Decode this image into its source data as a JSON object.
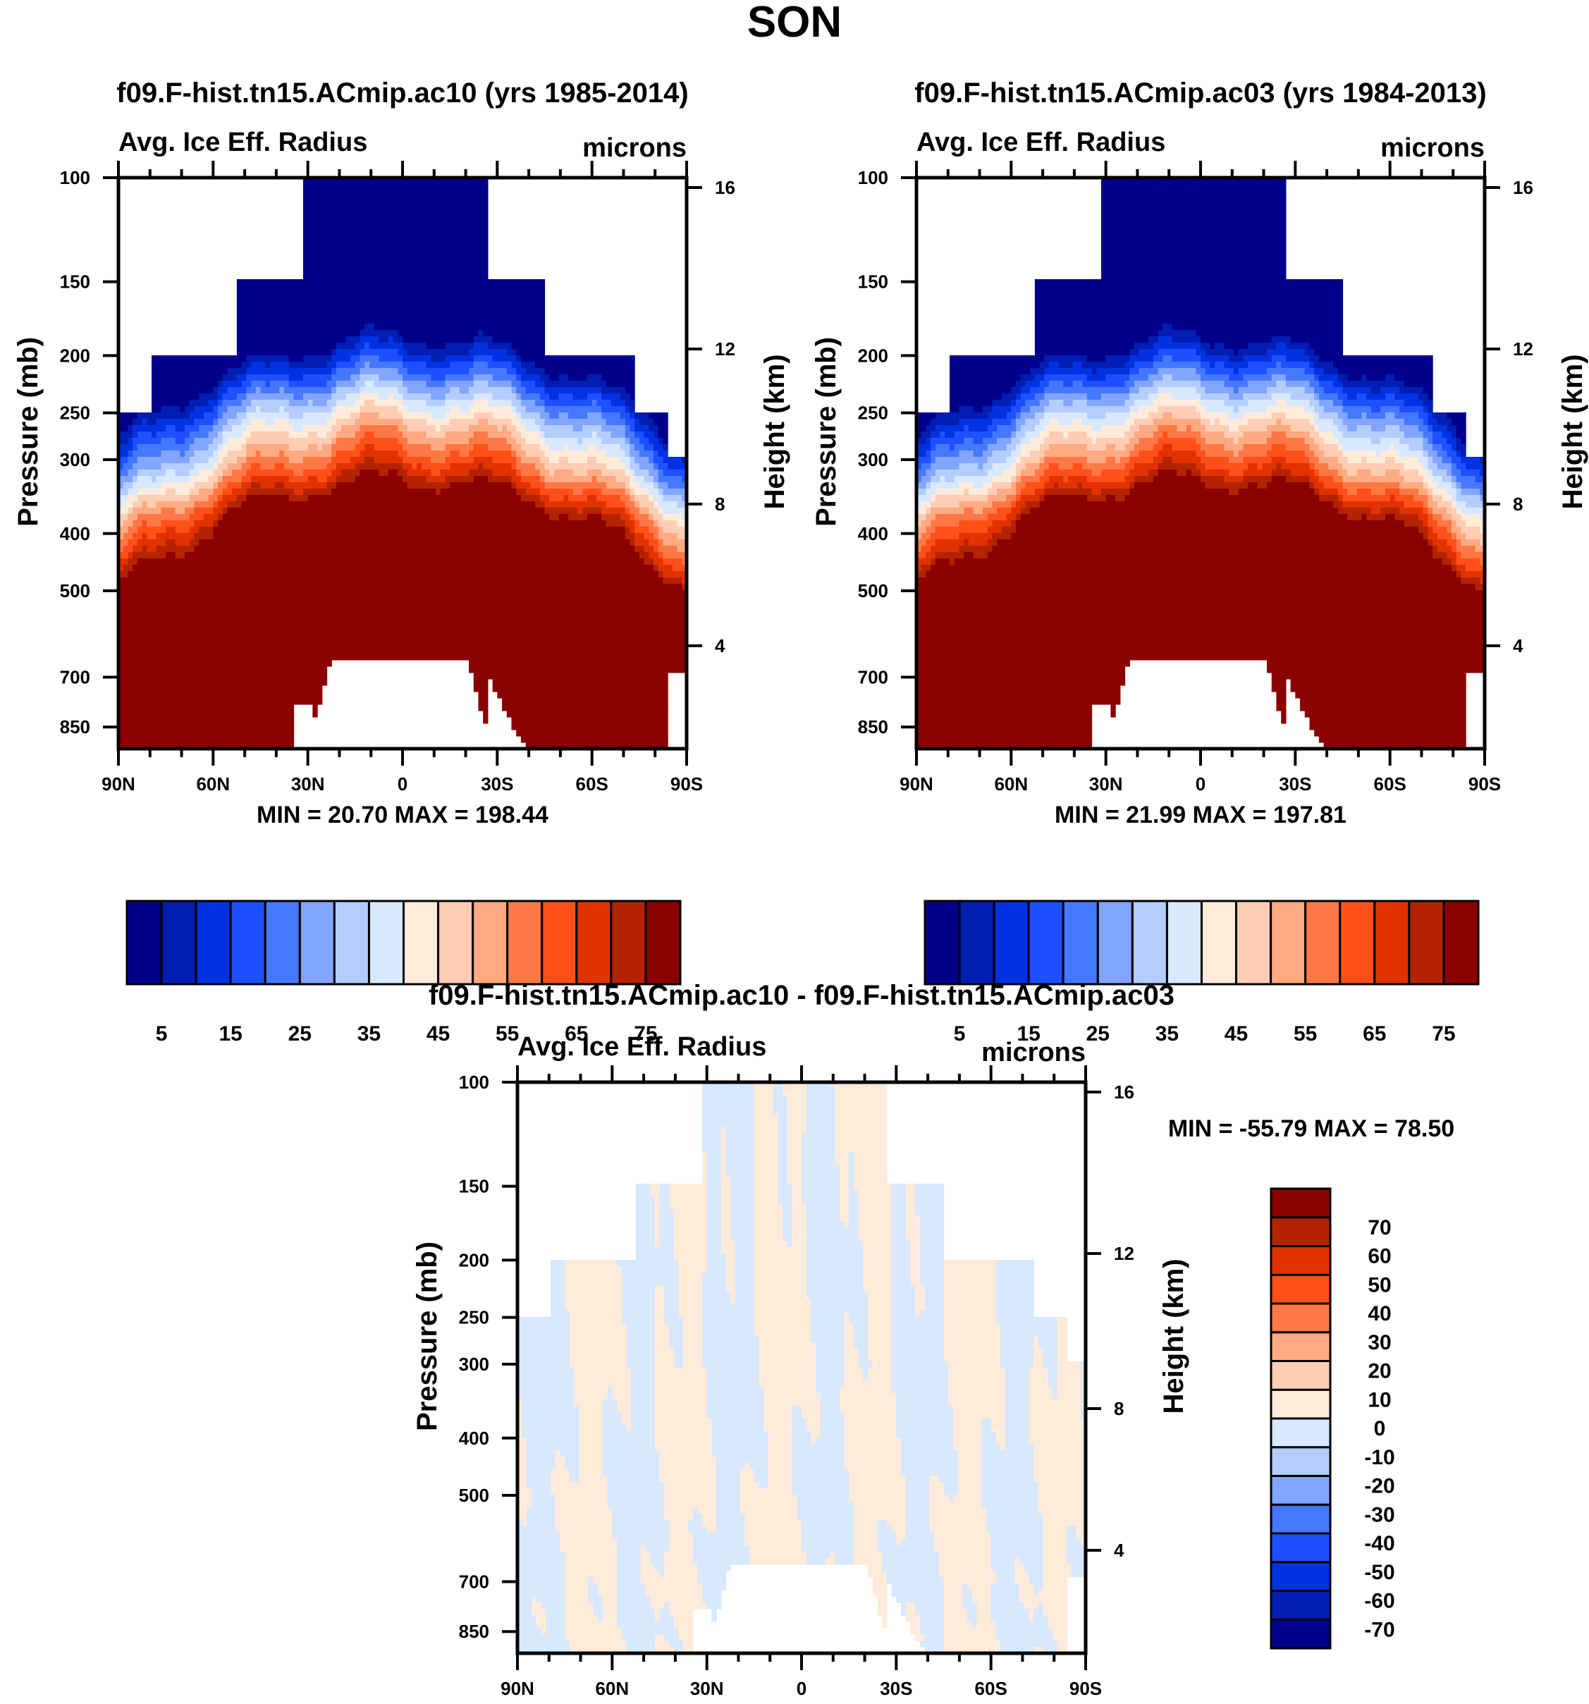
{
  "figure": {
    "title": "SON"
  },
  "chart_data": [
    {
      "type": "heatmap",
      "panel": "top-left",
      "title": "f09.F-hist.tn15.ACmip.ac10 (yrs 1985-2014)",
      "left_string": "Avg. Ice Eff. Radius",
      "right_string": "microns",
      "xlabel": "",
      "ylabel": "Pressure (mb)",
      "ylabel_right": "Height (km)",
      "x_ticks": [
        "90N",
        "60N",
        "30N",
        "0",
        "30S",
        "60S",
        "90S"
      ],
      "x_values": [
        90,
        60,
        30,
        0,
        -30,
        -60,
        -90
      ],
      "y_ticks": [
        "100",
        "150",
        "200",
        "250",
        "300",
        "400",
        "500",
        "700",
        "850"
      ],
      "y_values": [
        100,
        150,
        200,
        250,
        300,
        400,
        500,
        700,
        850
      ],
      "y_scale": "log",
      "ylim": [
        100,
        925
      ],
      "y_right_ticks": [
        "16",
        "12",
        "8",
        "4"
      ],
      "y_right_values": [
        16,
        12,
        8,
        4
      ],
      "min_max_text": "MIN =  20.70  MAX = 198.44",
      "min": 20.7,
      "max": 198.44,
      "colorbar": {
        "orientation": "horizontal",
        "levels": [
          5,
          10,
          15,
          20,
          25,
          30,
          35,
          40,
          45,
          50,
          55,
          60,
          65,
          70,
          75
        ],
        "labels": [
          "5",
          "15",
          "25",
          "35",
          "45",
          "55",
          "65",
          "75"
        ]
      }
    },
    {
      "type": "heatmap",
      "panel": "top-right",
      "title": "f09.F-hist.tn15.ACmip.ac03 (yrs 1984-2013)",
      "left_string": "Avg. Ice Eff. Radius",
      "right_string": "microns",
      "xlabel": "",
      "ylabel": "Pressure (mb)",
      "ylabel_right": "Height (km)",
      "x_ticks": [
        "90N",
        "60N",
        "30N",
        "0",
        "30S",
        "60S",
        "90S"
      ],
      "x_values": [
        90,
        60,
        30,
        0,
        -30,
        -60,
        -90
      ],
      "y_ticks": [
        "100",
        "150",
        "200",
        "250",
        "300",
        "400",
        "500",
        "700",
        "850"
      ],
      "y_values": [
        100,
        150,
        200,
        250,
        300,
        400,
        500,
        700,
        850
      ],
      "y_scale": "log",
      "ylim": [
        100,
        925
      ],
      "y_right_ticks": [
        "16",
        "12",
        "8",
        "4"
      ],
      "y_right_values": [
        16,
        12,
        8,
        4
      ],
      "min_max_text": "MIN =  21.99  MAX = 197.81",
      "min": 21.99,
      "max": 197.81,
      "colorbar": {
        "orientation": "horizontal",
        "levels": [
          5,
          10,
          15,
          20,
          25,
          30,
          35,
          40,
          45,
          50,
          55,
          60,
          65,
          70,
          75
        ],
        "labels": [
          "5",
          "15",
          "25",
          "35",
          "45",
          "55",
          "65",
          "75"
        ]
      }
    },
    {
      "type": "heatmap",
      "panel": "bottom",
      "title": "f09.F-hist.tn15.ACmip.ac10 - f09.F-hist.tn15.ACmip.ac03",
      "left_string": "Avg. Ice Eff. Radius",
      "right_string": "microns",
      "xlabel": "",
      "ylabel": "Pressure (mb)",
      "ylabel_right": "Height (km)",
      "x_ticks": [
        "90N",
        "60N",
        "30N",
        "0",
        "30S",
        "60S",
        "90S"
      ],
      "x_values": [
        90,
        60,
        30,
        0,
        -30,
        -60,
        -90
      ],
      "y_ticks": [
        "100",
        "150",
        "200",
        "250",
        "300",
        "400",
        "500",
        "700",
        "850"
      ],
      "y_values": [
        100,
        150,
        200,
        250,
        300,
        400,
        500,
        700,
        850
      ],
      "y_scale": "log",
      "ylim": [
        100,
        925
      ],
      "y_right_ticks": [
        "16",
        "12",
        "8",
        "4"
      ],
      "y_right_values": [
        16,
        12,
        8,
        4
      ],
      "min_max_text": "MIN = -55.79  MAX =  78.50",
      "min": -55.79,
      "max": 78.5,
      "colorbar": {
        "orientation": "vertical",
        "levels": [
          -70,
          -60,
          -50,
          -40,
          -30,
          -20,
          -10,
          0,
          10,
          20,
          30,
          40,
          50,
          60,
          70
        ],
        "labels": [
          "-70",
          "-60",
          "-50",
          "-40",
          "-30",
          "-20",
          "-10",
          "0",
          "10",
          "20",
          "30",
          "40",
          "50",
          "60",
          "70"
        ]
      }
    }
  ],
  "colors": [
    "#00008b",
    "#001eb4",
    "#0032e1",
    "#1e50ff",
    "#4678ff",
    "#82a5ff",
    "#b4cdff",
    "#d7e8ff",
    "#ffebda",
    "#ffcdb4",
    "#ffaa82",
    "#ff7846",
    "#ff5019",
    "#e13200",
    "#b42300",
    "#8b0000"
  ],
  "valid_domain_top_pressure_by_lat": {
    "lat_edges": [
      90,
      80,
      52,
      31,
      -27,
      -45,
      -73,
      -84,
      -90
    ],
    "top_mb": [
      250,
      200,
      150,
      100,
      150,
      200,
      250,
      300
    ]
  }
}
